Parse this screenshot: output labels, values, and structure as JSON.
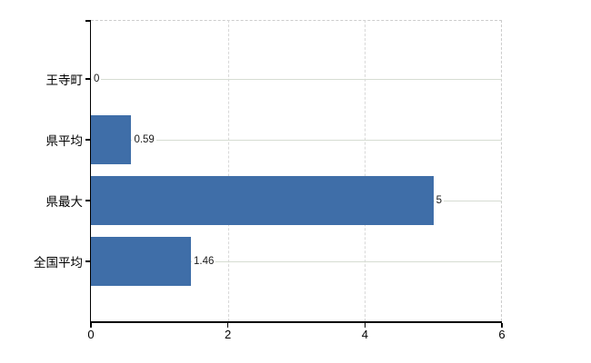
{
  "chart_data": {
    "type": "bar",
    "orientation": "horizontal",
    "title": "",
    "categories": [
      "王寺町",
      "県平均",
      "県最大",
      "全国平均"
    ],
    "values": [
      0,
      0.59,
      5,
      1.46
    ],
    "value_labels": [
      "0",
      "0.59",
      "5",
      "1.46"
    ],
    "xlim": [
      0,
      6
    ],
    "xticks": [
      0,
      2,
      4,
      6
    ],
    "xtick_labels": [
      "0",
      "2",
      "4",
      "6"
    ],
    "grid": true,
    "legend_position": "none",
    "bar_color": "#3f6ea8",
    "hgrid_color": "#d6dcd2",
    "vgrid_color": "#d8d8d8",
    "frame_dash_color": "#cccccc",
    "axis_color": "#000000",
    "text_color": "#000000"
  }
}
